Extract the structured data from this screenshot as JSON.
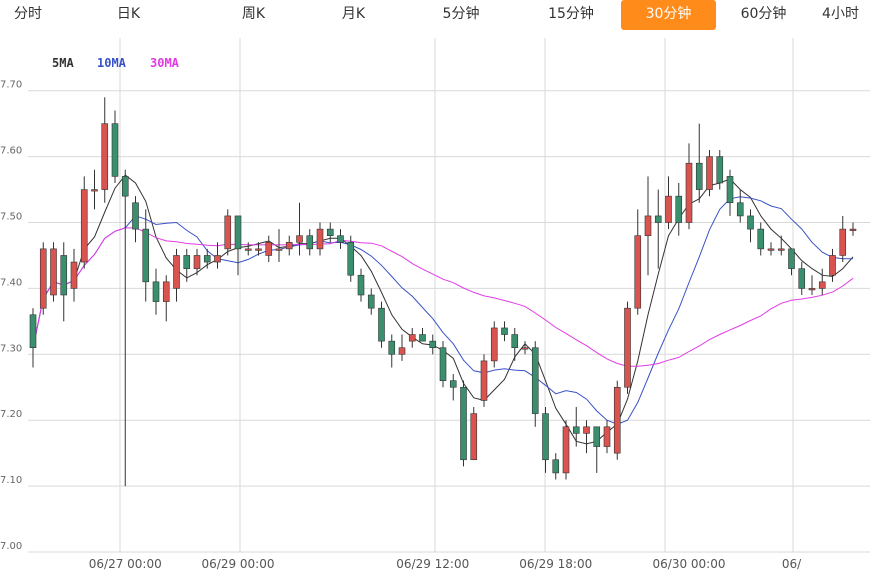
{
  "tabs": [
    {
      "label": "分时",
      "active": false
    },
    {
      "label": "日K",
      "active": false
    },
    {
      "label": "周K",
      "active": false
    },
    {
      "label": "月K",
      "active": false
    },
    {
      "label": "5分钟",
      "active": false
    },
    {
      "label": "15分钟",
      "active": false
    },
    {
      "label": "30分钟",
      "active": true
    },
    {
      "label": "60分钟",
      "active": false
    },
    {
      "label": "4小时",
      "active": false
    }
  ],
  "colors": {
    "up": "#d9534f",
    "down": "#3a8f6e",
    "ma5": "#333333",
    "ma10": "#3a52c8",
    "ma30": "#e23be6",
    "grid": "#d9d9d9",
    "active_tab": "#ff8c1a"
  },
  "chart_data": {
    "type": "candlestick",
    "legend": [
      "5MA",
      "10MA",
      "30MA"
    ],
    "legend_placement": "top-left",
    "ylim": [
      7.0,
      7.78
    ],
    "y_ticks": [
      "7.00",
      "7.10",
      "7.20",
      "7.30",
      "7.40",
      "7.50",
      "7.60",
      "7.70"
    ],
    "x_ticks": [
      "06/27 00:00",
      "06/29 00:00",
      "06/29 12:00",
      "06/29 18:00",
      "06/30 00:00",
      "06/"
    ],
    "x_tick_index": [
      9,
      20,
      39,
      51,
      64,
      74
    ],
    "grid": true,
    "candles": [
      [
        7.36,
        7.31,
        7.37,
        7.28
      ],
      [
        7.37,
        7.46,
        7.47,
        7.36
      ],
      [
        7.39,
        7.46,
        7.47,
        7.38
      ],
      [
        7.45,
        7.39,
        7.47,
        7.35
      ],
      [
        7.4,
        7.44,
        7.46,
        7.38
      ],
      [
        7.44,
        7.55,
        7.57,
        7.43
      ],
      [
        7.55,
        7.55,
        7.58,
        7.52
      ],
      [
        7.55,
        7.65,
        7.69,
        7.53
      ],
      [
        7.65,
        7.57,
        7.67,
        7.56
      ],
      [
        7.57,
        7.54,
        7.58,
        7.1
      ],
      [
        7.53,
        7.49,
        7.54,
        7.47
      ],
      [
        7.49,
        7.41,
        7.52,
        7.38
      ],
      [
        7.41,
        7.38,
        7.43,
        7.36
      ],
      [
        7.38,
        7.41,
        7.42,
        7.35
      ],
      [
        7.4,
        7.45,
        7.46,
        7.38
      ],
      [
        7.45,
        7.43,
        7.46,
        7.41
      ],
      [
        7.43,
        7.45,
        7.46,
        7.42
      ],
      [
        7.45,
        7.44,
        7.46,
        7.43
      ],
      [
        7.44,
        7.45,
        7.47,
        7.43
      ],
      [
        7.46,
        7.51,
        7.52,
        7.45
      ],
      [
        7.51,
        7.46,
        7.51,
        7.42
      ],
      [
        7.46,
        7.46,
        7.47,
        7.45
      ],
      [
        7.46,
        7.46,
        7.47,
        7.45
      ],
      [
        7.45,
        7.47,
        7.48,
        7.44
      ],
      [
        7.46,
        7.46,
        7.49,
        7.44
      ],
      [
        7.46,
        7.47,
        7.48,
        7.45
      ],
      [
        7.47,
        7.48,
        7.53,
        7.45
      ],
      [
        7.48,
        7.46,
        7.49,
        7.45
      ],
      [
        7.46,
        7.49,
        7.5,
        7.45
      ],
      [
        7.49,
        7.48,
        7.5,
        7.47
      ],
      [
        7.48,
        7.47,
        7.49,
        7.46
      ],
      [
        7.47,
        7.42,
        7.48,
        7.41
      ],
      [
        7.42,
        7.39,
        7.43,
        7.38
      ],
      [
        7.39,
        7.37,
        7.4,
        7.36
      ],
      [
        7.37,
        7.32,
        7.38,
        7.31
      ],
      [
        7.32,
        7.3,
        7.33,
        7.28
      ],
      [
        7.3,
        7.31,
        7.33,
        7.29
      ],
      [
        7.32,
        7.33,
        7.34,
        7.31
      ],
      [
        7.33,
        7.32,
        7.34,
        7.32
      ],
      [
        7.32,
        7.31,
        7.33,
        7.3
      ],
      [
        7.31,
        7.26,
        7.32,
        7.25
      ],
      [
        7.26,
        7.25,
        7.27,
        7.23
      ],
      [
        7.25,
        7.14,
        7.26,
        7.13
      ],
      [
        7.14,
        7.21,
        7.22,
        7.14
      ],
      [
        7.23,
        7.29,
        7.3,
        7.22
      ],
      [
        7.29,
        7.34,
        7.35,
        7.28
      ],
      [
        7.34,
        7.33,
        7.35,
        7.32
      ],
      [
        7.33,
        7.31,
        7.34,
        7.29
      ],
      [
        7.31,
        7.31,
        7.32,
        7.3
      ],
      [
        7.31,
        7.21,
        7.32,
        7.19
      ],
      [
        7.21,
        7.14,
        7.22,
        7.12
      ],
      [
        7.14,
        7.12,
        7.15,
        7.11
      ],
      [
        7.12,
        7.19,
        7.2,
        7.11
      ],
      [
        7.19,
        7.18,
        7.22,
        7.16
      ],
      [
        7.18,
        7.19,
        7.2,
        7.15
      ],
      [
        7.19,
        7.16,
        7.19,
        7.12
      ],
      [
        7.16,
        7.19,
        7.2,
        7.15
      ],
      [
        7.15,
        7.25,
        7.26,
        7.14
      ],
      [
        7.25,
        7.37,
        7.38,
        7.24
      ],
      [
        7.37,
        7.48,
        7.52,
        7.36
      ],
      [
        7.48,
        7.51,
        7.57,
        7.42
      ],
      [
        7.51,
        7.5,
        7.55,
        7.43
      ],
      [
        7.5,
        7.54,
        7.57,
        7.49
      ],
      [
        7.54,
        7.5,
        7.56,
        7.48
      ],
      [
        7.5,
        7.59,
        7.62,
        7.49
      ],
      [
        7.59,
        7.55,
        7.65,
        7.53
      ],
      [
        7.55,
        7.6,
        7.61,
        7.54
      ],
      [
        7.6,
        7.56,
        7.61,
        7.55
      ],
      [
        7.57,
        7.53,
        7.58,
        7.51
      ],
      [
        7.53,
        7.51,
        7.55,
        7.5
      ],
      [
        7.51,
        7.49,
        7.52,
        7.47
      ],
      [
        7.49,
        7.46,
        7.5,
        7.45
      ],
      [
        7.46,
        7.46,
        7.47,
        7.45
      ],
      [
        7.46,
        7.46,
        7.48,
        7.45
      ],
      [
        7.46,
        7.43,
        7.46,
        7.42
      ],
      [
        7.43,
        7.4,
        7.44,
        7.39
      ],
      [
        7.4,
        7.4,
        7.42,
        7.39
      ],
      [
        7.4,
        7.41,
        7.43,
        7.39
      ],
      [
        7.42,
        7.45,
        7.46,
        7.41
      ],
      [
        7.45,
        7.49,
        7.51,
        7.44
      ],
      [
        7.49,
        7.49,
        7.5,
        7.48
      ]
    ]
  }
}
